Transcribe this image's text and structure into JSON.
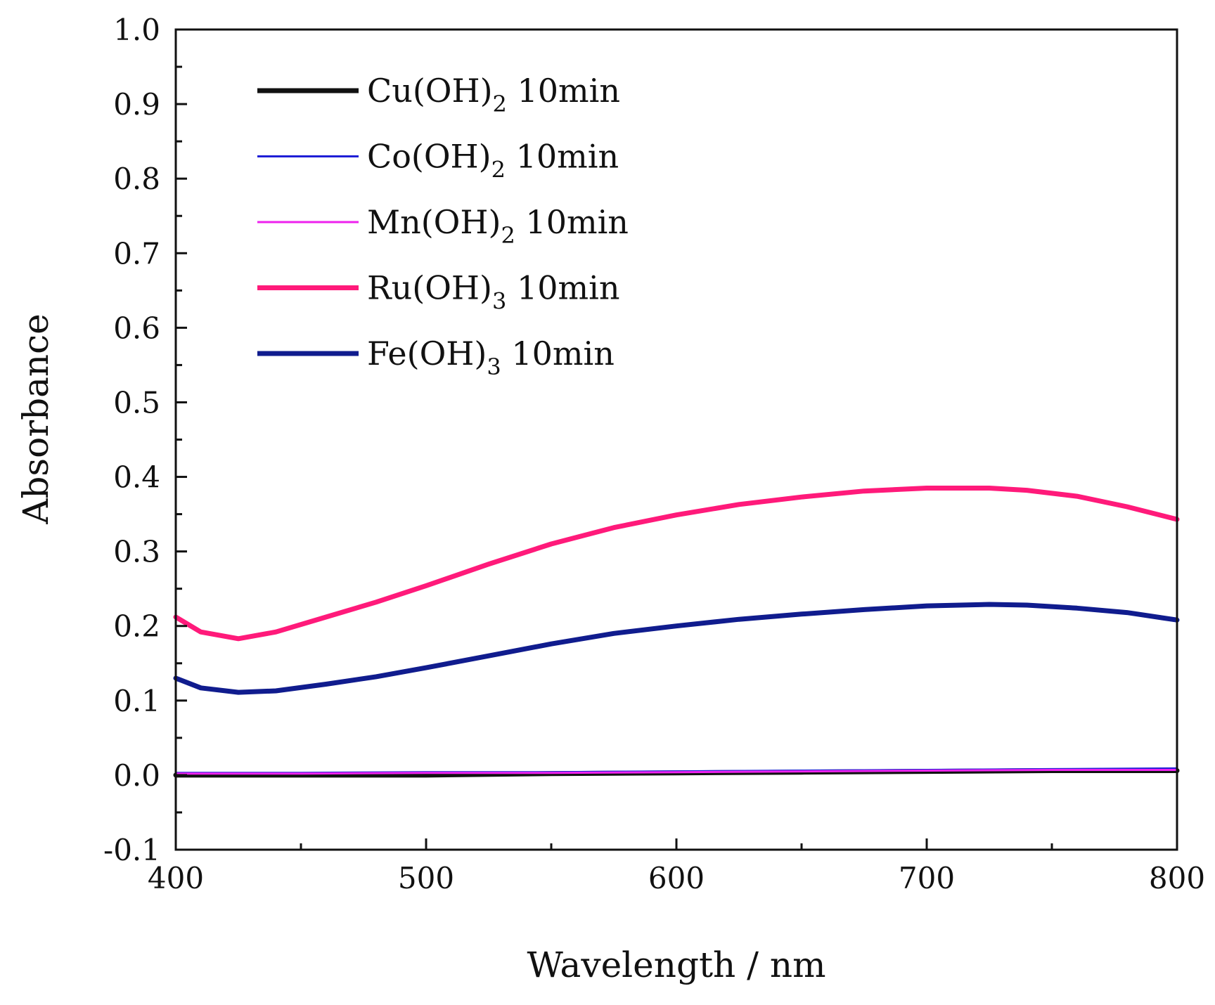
{
  "chart_data": {
    "type": "line",
    "title": "",
    "xlabel": "Wavelength / nm",
    "ylabel": "Absorbance",
    "xlim": [
      400,
      800
    ],
    "ylim": [
      -0.1,
      1.0
    ],
    "x_ticks": [
      400,
      500,
      600,
      700,
      800
    ],
    "x_tick_labels": [
      "400",
      "500",
      "600",
      "700",
      "800"
    ],
    "y_ticks": [
      -0.1,
      0.0,
      0.1,
      0.2,
      0.3,
      0.4,
      0.5,
      0.6,
      0.7,
      0.8,
      0.9,
      1.0
    ],
    "y_tick_labels": [
      "-0.1",
      "0.0",
      "0.1",
      "0.2",
      "0.3",
      "0.4",
      "0.5",
      "0.6",
      "0.7",
      "0.8",
      "0.9",
      "1.0"
    ],
    "grid": false,
    "legend_position": "top-left",
    "series": [
      {
        "name": "Cu(OH)2 10min",
        "label_main": "Cu(OH)",
        "label_sub": "2",
        "label_suffix": " 10min",
        "color": "#111111",
        "width": "thick",
        "x": [
          400,
          450,
          500,
          550,
          600,
          650,
          700,
          750,
          800
        ],
        "y": [
          0.0,
          0.0,
          0.0,
          0.002,
          0.003,
          0.004,
          0.005,
          0.006,
          0.006
        ]
      },
      {
        "name": "Co(OH)2 10min",
        "label_main": "Co(OH)",
        "label_sub": "2",
        "label_suffix": " 10min",
        "color": "#1f1fd6",
        "width": "thin",
        "x": [
          400,
          450,
          500,
          550,
          600,
          650,
          700,
          750,
          800
        ],
        "y": [
          0.003,
          0.003,
          0.004,
          0.004,
          0.005,
          0.006,
          0.007,
          0.008,
          0.009
        ]
      },
      {
        "name": "Mn(OH)2 10min",
        "label_main": "Mn(OH)",
        "label_sub": "2",
        "label_suffix": " 10min",
        "color": "#ee22ee",
        "width": "thin",
        "x": [
          400,
          450,
          500,
          550,
          600,
          650,
          700,
          750,
          800
        ],
        "y": [
          0.002,
          0.002,
          0.003,
          0.003,
          0.004,
          0.005,
          0.006,
          0.007,
          0.007
        ]
      },
      {
        "name": "Ru(OH)3 10min",
        "label_main": "Ru(OH)",
        "label_sub": "3",
        "label_suffix": " 10min",
        "color": "#ff1a7a",
        "width": "thick",
        "x": [
          400,
          410,
          425,
          440,
          460,
          480,
          500,
          525,
          550,
          575,
          600,
          625,
          650,
          675,
          700,
          725,
          740,
          760,
          780,
          800
        ],
        "y": [
          0.212,
          0.192,
          0.183,
          0.192,
          0.212,
          0.232,
          0.254,
          0.283,
          0.31,
          0.332,
          0.349,
          0.363,
          0.373,
          0.381,
          0.385,
          0.385,
          0.382,
          0.374,
          0.36,
          0.343
        ]
      },
      {
        "name": "Fe(OH)3 10min",
        "label_main": "Fe(OH)",
        "label_sub": "3",
        "label_suffix": " 10min",
        "color": "#101c8e",
        "width": "thick",
        "x": [
          400,
          410,
          425,
          440,
          460,
          480,
          500,
          525,
          550,
          575,
          600,
          625,
          650,
          675,
          700,
          725,
          740,
          760,
          780,
          800
        ],
        "y": [
          0.13,
          0.117,
          0.111,
          0.113,
          0.122,
          0.132,
          0.144,
          0.16,
          0.176,
          0.19,
          0.2,
          0.209,
          0.216,
          0.222,
          0.227,
          0.229,
          0.228,
          0.224,
          0.218,
          0.208
        ]
      }
    ]
  }
}
